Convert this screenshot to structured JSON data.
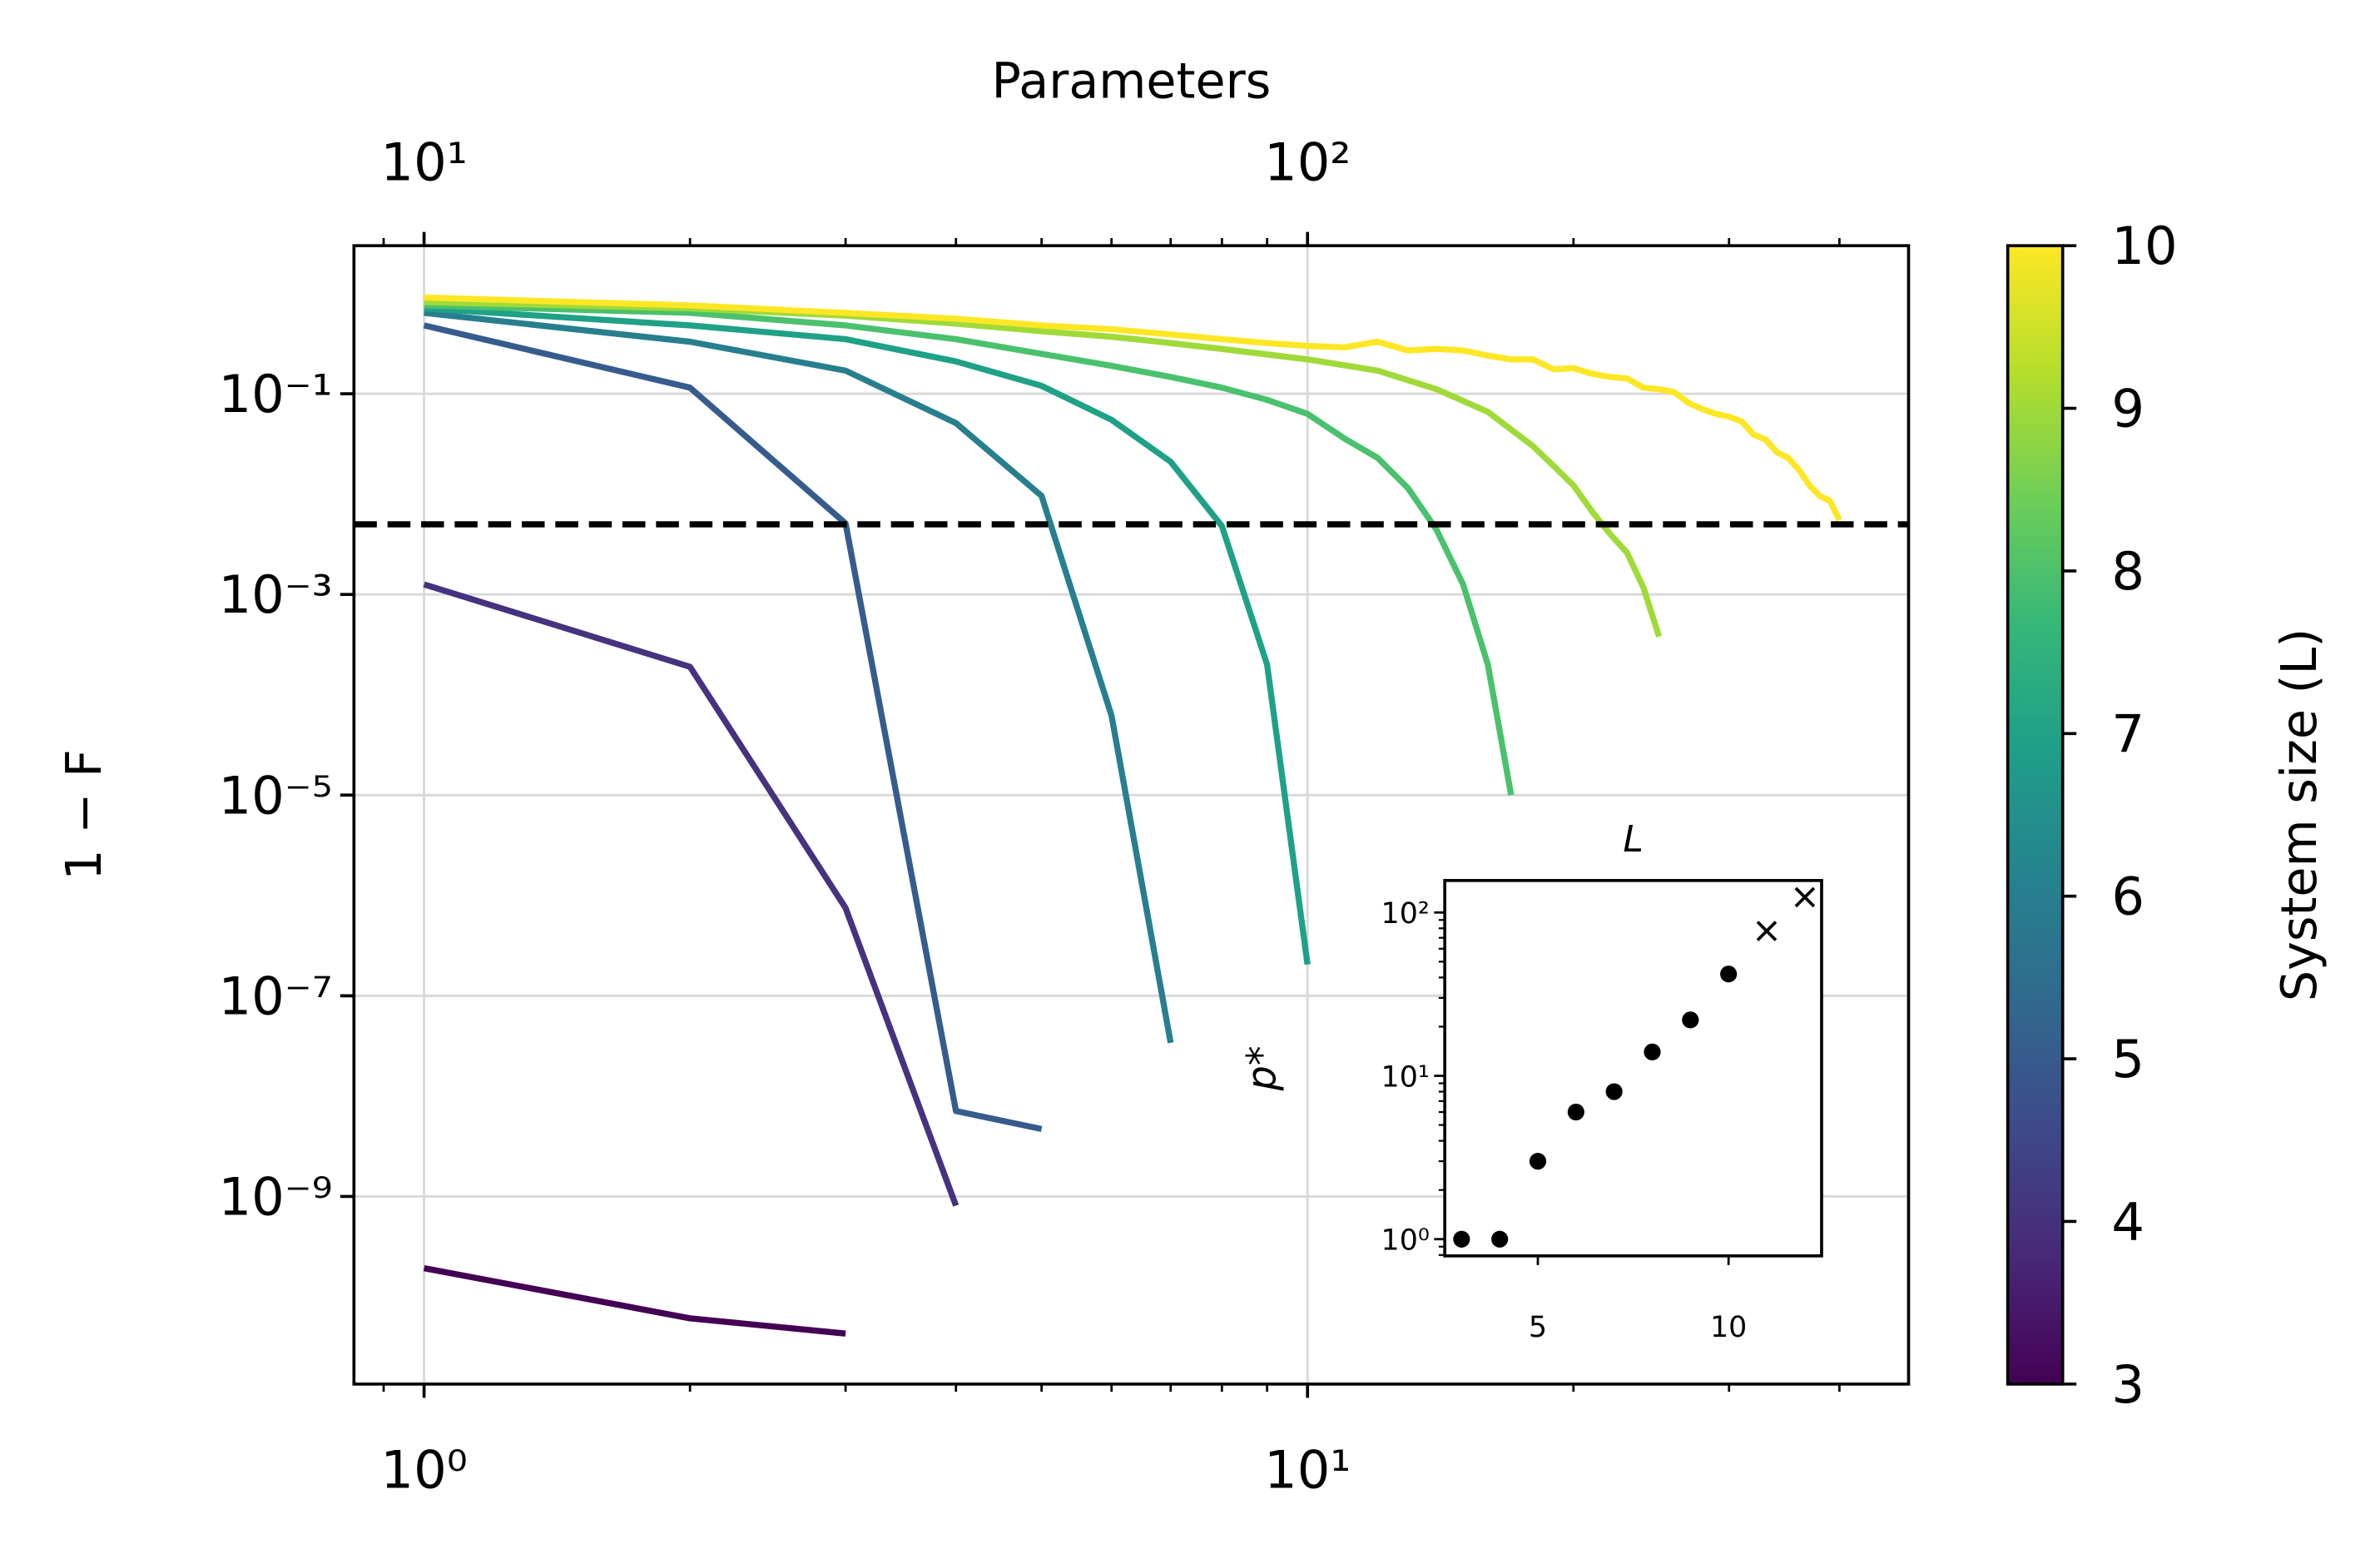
{
  "chart_data": [
    {
      "type": "line",
      "x2label": "Parameters",
      "ylabel": "1 − F",
      "xscale": "log",
      "yscale": "log",
      "xlim": [
        0.833,
        47.9
      ],
      "xticks": [
        {
          "value": 1,
          "label": "10⁰"
        },
        {
          "value": 10,
          "label": "10¹"
        }
      ],
      "x2lim": [
        8.33,
        479
      ],
      "x2ticks": [
        {
          "value": 10,
          "label": "10¹"
        },
        {
          "value": 100,
          "label": "10²"
        }
      ],
      "ylim": [
        1.35e-11,
        2.99
      ],
      "yticks": [
        {
          "value": 0.1,
          "label": "10⁻¹"
        },
        {
          "value": 0.001,
          "label": "10⁻³"
        },
        {
          "value": 1e-05,
          "label": "10⁻⁵"
        },
        {
          "value": 1e-07,
          "label": "10⁻⁷"
        },
        {
          "value": 1e-09,
          "label": "10⁻⁹"
        }
      ],
      "grid": true,
      "threshold": 0.005,
      "threshold_color": "#000000",
      "series": [
        {
          "color": "#440154",
          "x": [
            1,
            2,
            3
          ],
          "values": [
            1.93e-10,
            6.1e-11,
            4.3e-11
          ]
        },
        {
          "color": "#46327e",
          "x": [
            1,
            2,
            3,
            4
          ],
          "values": [
            0.00126,
            0.00019,
            7.5e-07,
            8.1e-10
          ]
        },
        {
          "color": "#365c8d",
          "x": [
            1,
            2,
            3,
            4,
            5
          ],
          "values": [
            0.48,
            0.115,
            0.0051,
            7.1e-09,
            4.7e-09
          ]
        },
        {
          "color": "#277f8e",
          "x": [
            1,
            2,
            3,
            4,
            5,
            6,
            7
          ],
          "values": [
            0.64,
            0.33,
            0.17,
            0.051,
            0.0096,
            6.2e-05,
            3.4e-08
          ]
        },
        {
          "color": "#1fa187",
          "x": [
            1,
            2,
            3,
            4,
            5,
            6,
            7,
            8,
            9,
            10
          ],
          "values": [
            0.71,
            0.48,
            0.35,
            0.21,
            0.12,
            0.055,
            0.021,
            0.0048,
            0.0002,
            2.05e-07
          ]
        },
        {
          "color": "#4ac16d",
          "x": [
            1,
            2,
            3,
            4,
            5,
            6,
            7,
            8,
            9,
            10,
            11,
            12,
            13,
            14,
            15,
            16,
            17
          ],
          "values": [
            0.76,
            0.64,
            0.48,
            0.35,
            0.25,
            0.19,
            0.147,
            0.115,
            0.087,
            0.063,
            0.036,
            0.023,
            0.0114,
            0.0044,
            0.00126,
            0.0002,
            1e-05
          ]
        },
        {
          "color": "#a0da39",
          "x": [
            1,
            2,
            3,
            4,
            5,
            6,
            7,
            8,
            10,
            12,
            14,
            16,
            18,
            19,
            20,
            21,
            22,
            23,
            24,
            25
          ],
          "values": [
            0.82,
            0.71,
            0.6,
            0.5,
            0.42,
            0.37,
            0.32,
            0.28,
            0.22,
            0.17,
            0.111,
            0.066,
            0.03,
            0.019,
            0.0122,
            0.0067,
            0.004,
            0.0026,
            0.00117,
            0.00038
          ]
        },
        {
          "color": "#fde725",
          "x": [
            1,
            2,
            3,
            4,
            5,
            6,
            7,
            8,
            9,
            10,
            11,
            12,
            13,
            14,
            15,
            16,
            17,
            18,
            19,
            20,
            21,
            22,
            23,
            24,
            25,
            26,
            27,
            28,
            29,
            30,
            31,
            32,
            33,
            34,
            35,
            36,
            37,
            38,
            39,
            40
          ],
          "values": [
            0.91,
            0.76,
            0.64,
            0.56,
            0.48,
            0.44,
            0.39,
            0.35,
            0.32,
            0.3,
            0.29,
            0.33,
            0.27,
            0.28,
            0.27,
            0.24,
            0.22,
            0.22,
            0.175,
            0.18,
            0.158,
            0.147,
            0.142,
            0.115,
            0.111,
            0.104,
            0.081,
            0.07,
            0.063,
            0.059,
            0.053,
            0.039,
            0.035,
            0.026,
            0.023,
            0.0174,
            0.0122,
            0.0096,
            0.0086,
            0.0055
          ]
        }
      ],
      "colorbar": {
        "label": "System size (L)",
        "lim": [
          3,
          10
        ],
        "ticks": [
          3,
          4,
          5,
          6,
          7,
          8,
          9,
          10
        ],
        "colormap": [
          "#440154",
          "#482878",
          "#3e4989",
          "#31688e",
          "#26828e",
          "#1f9e89",
          "#35b779",
          "#6ece58",
          "#b5de2b",
          "#fde725"
        ]
      }
    },
    {
      "type": "scatter",
      "xlabel": "L",
      "ylabel": "p*",
      "yscale": "log",
      "xlim": [
        2.56,
        12.44
      ],
      "xticks": [
        5,
        10
      ],
      "ylim": [
        0.79,
        157
      ],
      "yticks": [
        {
          "value": 1,
          "label": "10⁰"
        },
        {
          "value": 10,
          "label": "10¹"
        },
        {
          "value": 100,
          "label": "10²"
        }
      ],
      "series": [
        {
          "marker": "o",
          "color": "#000000",
          "x": [
            3,
            4,
            5,
            6,
            7,
            8,
            9,
            10
          ],
          "values": [
            1,
            1,
            3,
            6,
            8,
            14,
            22,
            42
          ]
        },
        {
          "marker": "x",
          "color": "#000000",
          "x": [
            11,
            12
          ],
          "values": [
            77,
            124
          ]
        }
      ]
    }
  ]
}
